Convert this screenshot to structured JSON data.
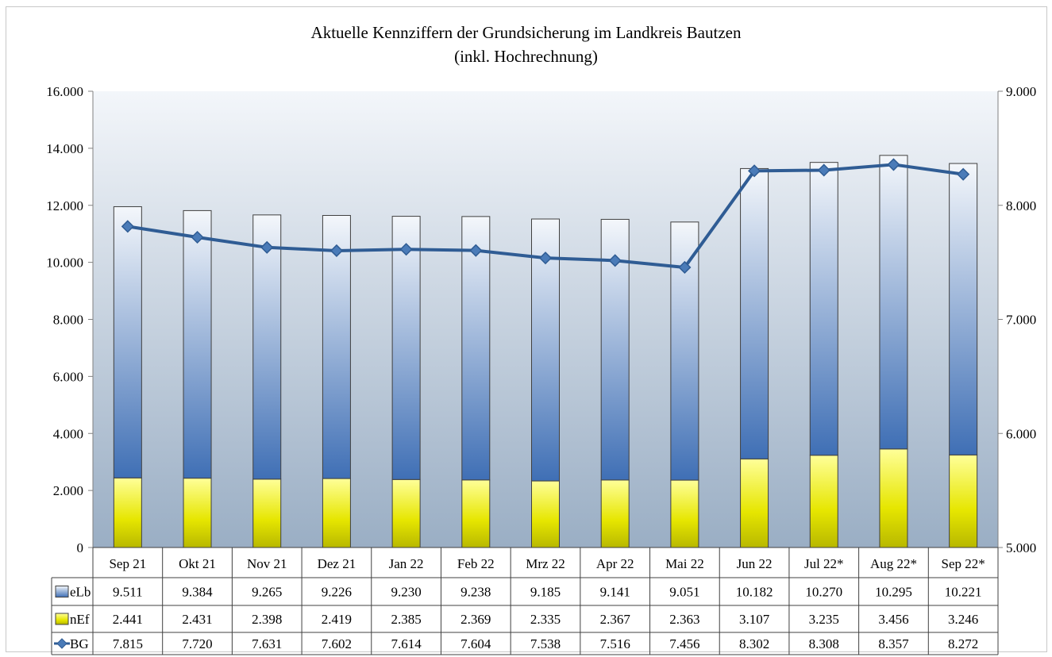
{
  "chart_data": {
    "type": "bar",
    "title": "Aktuelle Kennziffern der Grundsicherung im Landkreis Bautzen",
    "subtitle": "(inkl. Hochrechnung)",
    "categories": [
      "Sep 21",
      "Okt 21",
      "Nov 21",
      "Dez 21",
      "Jan 22",
      "Feb 22",
      "Mrz 22",
      "Apr 22",
      "Mai 22",
      "Jun 22",
      "Jul 22*",
      "Aug 22*",
      "Sep 22*"
    ],
    "stacked": true,
    "y_left": {
      "min": 0,
      "max": 16000,
      "step": 2000,
      "tick_labels": [
        "0",
        "2.000",
        "4.000",
        "6.000",
        "8.000",
        "10.000",
        "12.000",
        "14.000",
        "16.000"
      ]
    },
    "y_right": {
      "min": 5000,
      "max": 9000,
      "step": 1000,
      "tick_labels": [
        "5.000",
        "6.000",
        "7.000",
        "8.000",
        "9.000"
      ]
    },
    "series": [
      {
        "name": "eLb",
        "type": "bar",
        "axis": "left",
        "values": [
          9511,
          9384,
          9265,
          9226,
          9230,
          9238,
          9185,
          9141,
          9051,
          10182,
          10270,
          10295,
          10221
        ],
        "labels": [
          "9.511",
          "9.384",
          "9.265",
          "9.226",
          "9.230",
          "9.238",
          "9.185",
          "9.141",
          "9.051",
          "10.182",
          "10.270",
          "10.295",
          "10.221"
        ]
      },
      {
        "name": "nEf",
        "type": "bar",
        "axis": "left",
        "values": [
          2441,
          2431,
          2398,
          2419,
          2385,
          2369,
          2335,
          2367,
          2363,
          3107,
          3235,
          3456,
          3246
        ],
        "labels": [
          "2.441",
          "2.431",
          "2.398",
          "2.419",
          "2.385",
          "2.369",
          "2.335",
          "2.367",
          "2.363",
          "3.107",
          "3.235",
          "3.456",
          "3.246"
        ]
      },
      {
        "name": "BG",
        "type": "line",
        "axis": "right",
        "values": [
          7815,
          7720,
          7631,
          7602,
          7614,
          7604,
          7538,
          7516,
          7456,
          8302,
          8308,
          8357,
          8272
        ],
        "labels": [
          "7.815",
          "7.720",
          "7.631",
          "7.602",
          "7.614",
          "7.604",
          "7.538",
          "7.516",
          "7.456",
          "8.302",
          "8.308",
          "8.357",
          "8.272"
        ]
      }
    ],
    "colors": {
      "elb_top": "#f4f7fb",
      "elb_bottom": "#3f6fb5",
      "nef": "#e6e600",
      "line": "#2f5c94",
      "marker": "#4a7bb8",
      "plot_top": "#f3f6fa",
      "plot_bottom": "#9aaec4"
    },
    "legend": "data-table-below"
  }
}
